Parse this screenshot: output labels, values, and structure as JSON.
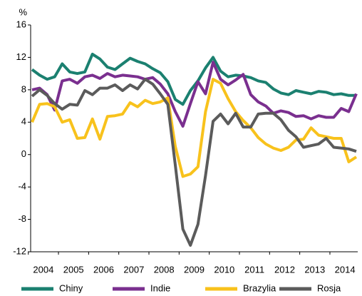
{
  "chart_data": {
    "type": "line",
    "y_label": "%",
    "categories": [
      "2004",
      null,
      null,
      null,
      "2005",
      null,
      null,
      null,
      "2006",
      null,
      null,
      null,
      "2007",
      null,
      null,
      null,
      "2008",
      null,
      null,
      null,
      "2009",
      null,
      null,
      null,
      "2010",
      null,
      null,
      null,
      "2011",
      null,
      null,
      null,
      "2012",
      null,
      null,
      null,
      "2013",
      null,
      null,
      null,
      "2014",
      null,
      null,
      null
    ],
    "series": [
      {
        "name": "Chiny",
        "color": "#1b8070",
        "values": [
          10.5,
          9.8,
          9.3,
          9.6,
          11.2,
          10.2,
          10.0,
          10.2,
          12.4,
          11.8,
          10.8,
          10.5,
          11.2,
          11.9,
          11.5,
          11.2,
          10.6,
          10.1,
          9.0,
          6.8,
          6.2,
          7.9,
          9.1,
          10.7,
          12.0,
          10.3,
          9.6,
          9.8,
          9.7,
          9.5,
          9.1,
          8.9,
          8.1,
          7.6,
          7.4,
          7.9,
          7.7,
          7.5,
          7.8,
          7.7,
          7.4,
          7.5,
          7.3,
          7.3
        ]
      },
      {
        "name": "Indie",
        "color": "#7a2f8f",
        "values": [
          8.0,
          8.2,
          7.4,
          5.5,
          9.1,
          9.3,
          8.8,
          9.6,
          9.8,
          9.4,
          10.0,
          9.6,
          9.8,
          9.7,
          9.6,
          9.3,
          9.5,
          8.7,
          7.5,
          5.3,
          3.5,
          6.3,
          9.0,
          7.5,
          11.4,
          9.3,
          8.6,
          9.2,
          9.9,
          7.4,
          6.5,
          6.0,
          5.1,
          5.4,
          5.2,
          4.7,
          4.8,
          4.4,
          4.8,
          4.6,
          4.6,
          5.7,
          5.3,
          7.5
        ]
      },
      {
        "name": "Brazylia",
        "color": "#f8c21c",
        "values": [
          4.0,
          6.2,
          6.3,
          5.9,
          4.0,
          4.3,
          2.0,
          2.1,
          4.4,
          1.9,
          4.7,
          4.8,
          5.0,
          6.4,
          5.9,
          6.7,
          6.3,
          6.5,
          7.0,
          1.0,
          -2.7,
          -2.4,
          -1.5,
          5.3,
          9.3,
          8.8,
          6.9,
          5.3,
          4.2,
          3.3,
          2.1,
          1.3,
          0.8,
          0.5,
          0.9,
          1.8,
          1.9,
          3.3,
          2.4,
          2.2,
          2.0,
          2.0,
          -0.9,
          -0.3
        ]
      },
      {
        "name": "Rosja",
        "color": "#5b5b5b",
        "values": [
          7.2,
          8.0,
          7.3,
          6.3,
          5.6,
          6.2,
          6.1,
          7.9,
          7.4,
          8.2,
          8.2,
          8.6,
          7.9,
          8.6,
          8.1,
          9.3,
          8.7,
          7.5,
          6.2,
          -1.3,
          -9.2,
          -11.2,
          -8.6,
          -2.6,
          4.1,
          5.0,
          3.8,
          5.1,
          3.4,
          3.4,
          5.0,
          5.1,
          5.1,
          4.3,
          3.0,
          2.2,
          0.9,
          1.1,
          1.3,
          2.0,
          0.9,
          0.8,
          0.7,
          0.4
        ]
      }
    ],
    "ylim": [
      -12,
      16
    ],
    "yticks": [
      -12,
      -8,
      -4,
      0,
      4,
      8,
      12,
      16
    ],
    "legend": "bottom"
  }
}
